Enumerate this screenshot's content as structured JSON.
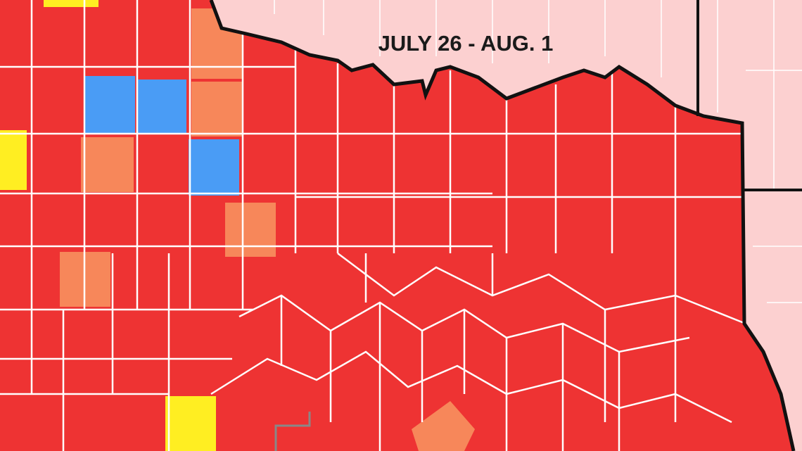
{
  "title": "JULY 26 - AUG. 1"
}
